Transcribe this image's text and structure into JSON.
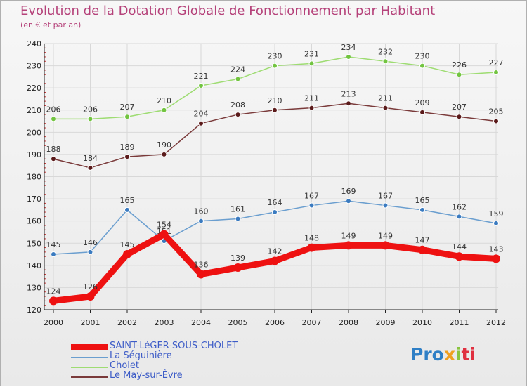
{
  "title": "Evolution de la Dotation Globale de Fonctionnement par Habitant",
  "subtitle": "(en € et par an)",
  "logo": {
    "p1": "Pro",
    "p2": "x",
    "p3": "i",
    "p4": "ti"
  },
  "colors": {
    "axis": "#222222",
    "grid": "#d8d8d8",
    "tick_label": "#222222",
    "value_label": "#333333"
  },
  "chart_data": {
    "type": "line",
    "title": "Evolution de la Dotation Globale de Fonctionnement par Habitant",
    "ylabel": "(en € et par an)",
    "xlabel": "",
    "ylim": [
      120,
      240
    ],
    "yticks": [
      120,
      130,
      140,
      150,
      160,
      170,
      180,
      190,
      200,
      210,
      220,
      230,
      240
    ],
    "grid": true,
    "categories": [
      "2000",
      "2001",
      "2002",
      "2003",
      "2004",
      "2005",
      "2006",
      "2007",
      "2008",
      "2009",
      "2010",
      "2011",
      "2012"
    ],
    "series": [
      {
        "name": "SAINT-LéGER-SOUS-CHOLET",
        "color": "#ee1111",
        "marker": "#ee1111",
        "thick": true,
        "values": [
          124,
          126,
          145,
          154,
          136,
          139,
          142,
          148,
          149,
          149,
          147,
          144,
          143
        ]
      },
      {
        "name": "La Séguinière",
        "color": "#6a9ecf",
        "marker": "#3b7bc0",
        "thick": false,
        "values": [
          145,
          146,
          165,
          151,
          160,
          161,
          164,
          167,
          169,
          167,
          165,
          162,
          159
        ]
      },
      {
        "name": "Cholet",
        "color": "#9edc72",
        "marker": "#72c440",
        "thick": false,
        "values": [
          206,
          206,
          207,
          210,
          221,
          224,
          230,
          231,
          234,
          232,
          230,
          226,
          227
        ]
      },
      {
        "name": "Le May-sur-Èvre",
        "color": "#7a3a3a",
        "marker": "#5a1a1a",
        "thick": false,
        "values": [
          188,
          184,
          189,
          190,
          204,
          208,
          210,
          211,
          213,
          211,
          209,
          207,
          205
        ]
      }
    ]
  }
}
